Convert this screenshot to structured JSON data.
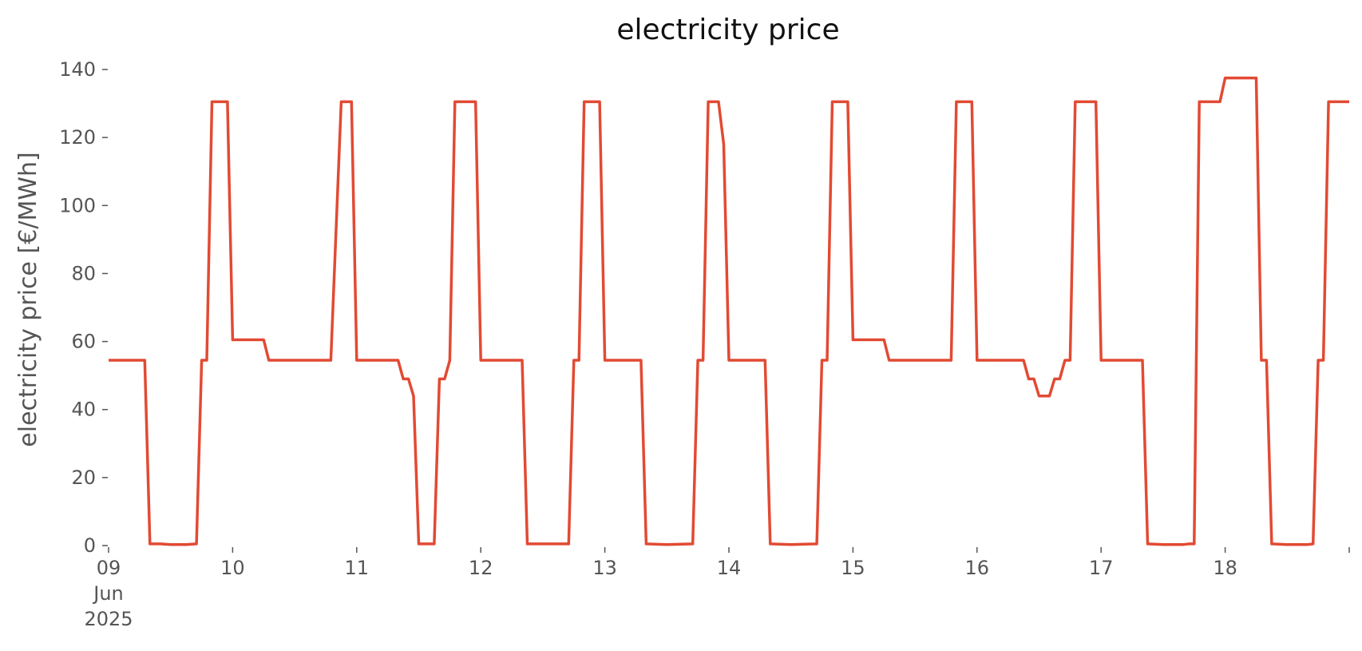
{
  "chart_data": {
    "type": "line",
    "title": "electricity price",
    "xlabel": "",
    "ylabel": "electricity price [€/MWh]",
    "grid": false,
    "legend": "none",
    "xlim": [
      "2025-06-09T00:00",
      "2025-06-19T00:00"
    ],
    "ylim": [
      0,
      140
    ],
    "yticks": [
      {
        "value": 0,
        "label": "0"
      },
      {
        "value": 20,
        "label": "20"
      },
      {
        "value": 40,
        "label": "40"
      },
      {
        "value": 60,
        "label": "60"
      },
      {
        "value": 80,
        "label": "80"
      },
      {
        "value": 100,
        "label": "100"
      },
      {
        "value": 120,
        "label": "120"
      },
      {
        "value": 140,
        "label": "140"
      }
    ],
    "xticks": [
      {
        "value": "2025-06-09T00:00",
        "label": [
          "09",
          "Jun",
          "2025"
        ]
      },
      {
        "value": "2025-06-10T00:00",
        "label": [
          "10"
        ]
      },
      {
        "value": "2025-06-11T00:00",
        "label": [
          "11"
        ]
      },
      {
        "value": "2025-06-12T00:00",
        "label": [
          "12"
        ]
      },
      {
        "value": "2025-06-13T00:00",
        "label": [
          "13"
        ]
      },
      {
        "value": "2025-06-14T00:00",
        "label": [
          "14"
        ]
      },
      {
        "value": "2025-06-15T00:00",
        "label": [
          "15"
        ]
      },
      {
        "value": "2025-06-16T00:00",
        "label": [
          "16"
        ]
      },
      {
        "value": "2025-06-17T00:00",
        "label": [
          "17"
        ]
      },
      {
        "value": "2025-06-18T00:00",
        "label": [
          "18"
        ]
      },
      {
        "value": "2025-06-19T00:00",
        "label": []
      }
    ],
    "series": [
      {
        "color": "#e24a33",
        "points": [
          [
            "2025-06-09T00:00",
            54.5
          ],
          [
            "2025-06-09T07:00",
            54.5
          ],
          [
            "2025-06-09T08:00",
            0.5
          ],
          [
            "2025-06-09T10:00",
            0.5
          ],
          [
            "2025-06-09T12:00",
            0.3
          ],
          [
            "2025-06-09T15:00",
            0.3
          ],
          [
            "2025-06-09T17:00",
            0.5
          ],
          [
            "2025-06-09T18:00",
            54.5
          ],
          [
            "2025-06-09T19:00",
            54.5
          ],
          [
            "2025-06-09T20:00",
            130.5
          ],
          [
            "2025-06-09T23:00",
            130.5
          ],
          [
            "2025-06-10T00:00",
            60.5
          ],
          [
            "2025-06-10T06:00",
            60.5
          ],
          [
            "2025-06-10T07:00",
            54.5
          ],
          [
            "2025-06-10T19:00",
            54.5
          ],
          [
            "2025-06-10T21:00",
            130.5
          ],
          [
            "2025-06-10T23:00",
            130.5
          ],
          [
            "2025-06-11T00:00",
            54.5
          ],
          [
            "2025-06-11T08:00",
            54.5
          ],
          [
            "2025-06-11T09:00",
            49.0
          ],
          [
            "2025-06-11T10:00",
            49.0
          ],
          [
            "2025-06-11T11:00",
            44.0
          ],
          [
            "2025-06-11T12:00",
            0.5
          ],
          [
            "2025-06-11T15:00",
            0.5
          ],
          [
            "2025-06-11T16:00",
            49.0
          ],
          [
            "2025-06-11T17:00",
            49.0
          ],
          [
            "2025-06-11T18:00",
            54.5
          ],
          [
            "2025-06-11T19:00",
            130.5
          ],
          [
            "2025-06-11T23:00",
            130.5
          ],
          [
            "2025-06-12T00:00",
            54.5
          ],
          [
            "2025-06-12T08:00",
            54.5
          ],
          [
            "2025-06-12T09:00",
            0.5
          ],
          [
            "2025-06-12T17:00",
            0.5
          ],
          [
            "2025-06-12T18:00",
            54.5
          ],
          [
            "2025-06-12T19:00",
            54.5
          ],
          [
            "2025-06-12T20:00",
            130.5
          ],
          [
            "2025-06-12T23:00",
            130.5
          ],
          [
            "2025-06-13T00:00",
            54.5
          ],
          [
            "2025-06-13T07:00",
            54.5
          ],
          [
            "2025-06-13T08:00",
            0.5
          ],
          [
            "2025-06-13T12:00",
            0.3
          ],
          [
            "2025-06-13T17:00",
            0.5
          ],
          [
            "2025-06-13T18:00",
            54.5
          ],
          [
            "2025-06-13T19:00",
            54.5
          ],
          [
            "2025-06-13T20:00",
            130.5
          ],
          [
            "2025-06-13T22:00",
            130.5
          ],
          [
            "2025-06-13T23:00",
            118.0
          ],
          [
            "2025-06-14T00:00",
            54.5
          ],
          [
            "2025-06-14T07:00",
            54.5
          ],
          [
            "2025-06-14T08:00",
            0.5
          ],
          [
            "2025-06-14T12:00",
            0.3
          ],
          [
            "2025-06-14T17:00",
            0.5
          ],
          [
            "2025-06-14T18:00",
            54.5
          ],
          [
            "2025-06-14T19:00",
            54.5
          ],
          [
            "2025-06-14T20:00",
            130.5
          ],
          [
            "2025-06-14T23:00",
            130.5
          ],
          [
            "2025-06-15T00:00",
            60.5
          ],
          [
            "2025-06-15T06:00",
            60.5
          ],
          [
            "2025-06-15T07:00",
            54.5
          ],
          [
            "2025-06-15T19:00",
            54.5
          ],
          [
            "2025-06-15T20:00",
            130.5
          ],
          [
            "2025-06-15T23:00",
            130.5
          ],
          [
            "2025-06-16T00:00",
            54.5
          ],
          [
            "2025-06-16T09:00",
            54.5
          ],
          [
            "2025-06-16T10:00",
            49.0
          ],
          [
            "2025-06-16T11:00",
            49.0
          ],
          [
            "2025-06-16T12:00",
            44.0
          ],
          [
            "2025-06-16T14:00",
            44.0
          ],
          [
            "2025-06-16T15:00",
            49.0
          ],
          [
            "2025-06-16T16:00",
            49.0
          ],
          [
            "2025-06-16T17:00",
            54.5
          ],
          [
            "2025-06-16T18:00",
            54.5
          ],
          [
            "2025-06-16T19:00",
            130.5
          ],
          [
            "2025-06-16T23:00",
            130.5
          ],
          [
            "2025-06-17T00:00",
            54.5
          ],
          [
            "2025-06-17T08:00",
            54.5
          ],
          [
            "2025-06-17T09:00",
            0.5
          ],
          [
            "2025-06-17T12:00",
            0.3
          ],
          [
            "2025-06-17T16:00",
            0.3
          ],
          [
            "2025-06-17T17:00",
            0.5
          ],
          [
            "2025-06-17T18:00",
            0.5
          ],
          [
            "2025-06-17T19:00",
            130.5
          ],
          [
            "2025-06-17T23:00",
            130.5
          ],
          [
            "2025-06-18T00:00",
            137.5
          ],
          [
            "2025-06-18T06:00",
            137.5
          ],
          [
            "2025-06-18T07:00",
            54.5
          ],
          [
            "2025-06-18T08:00",
            54.5
          ],
          [
            "2025-06-18T09:00",
            0.5
          ],
          [
            "2025-06-18T12:00",
            0.3
          ],
          [
            "2025-06-18T16:00",
            0.3
          ],
          [
            "2025-06-18T17:00",
            0.5
          ],
          [
            "2025-06-18T18:00",
            54.5
          ],
          [
            "2025-06-18T19:00",
            54.5
          ],
          [
            "2025-06-18T20:00",
            130.5
          ],
          [
            "2025-06-19T00:00",
            130.5
          ]
        ]
      }
    ]
  }
}
